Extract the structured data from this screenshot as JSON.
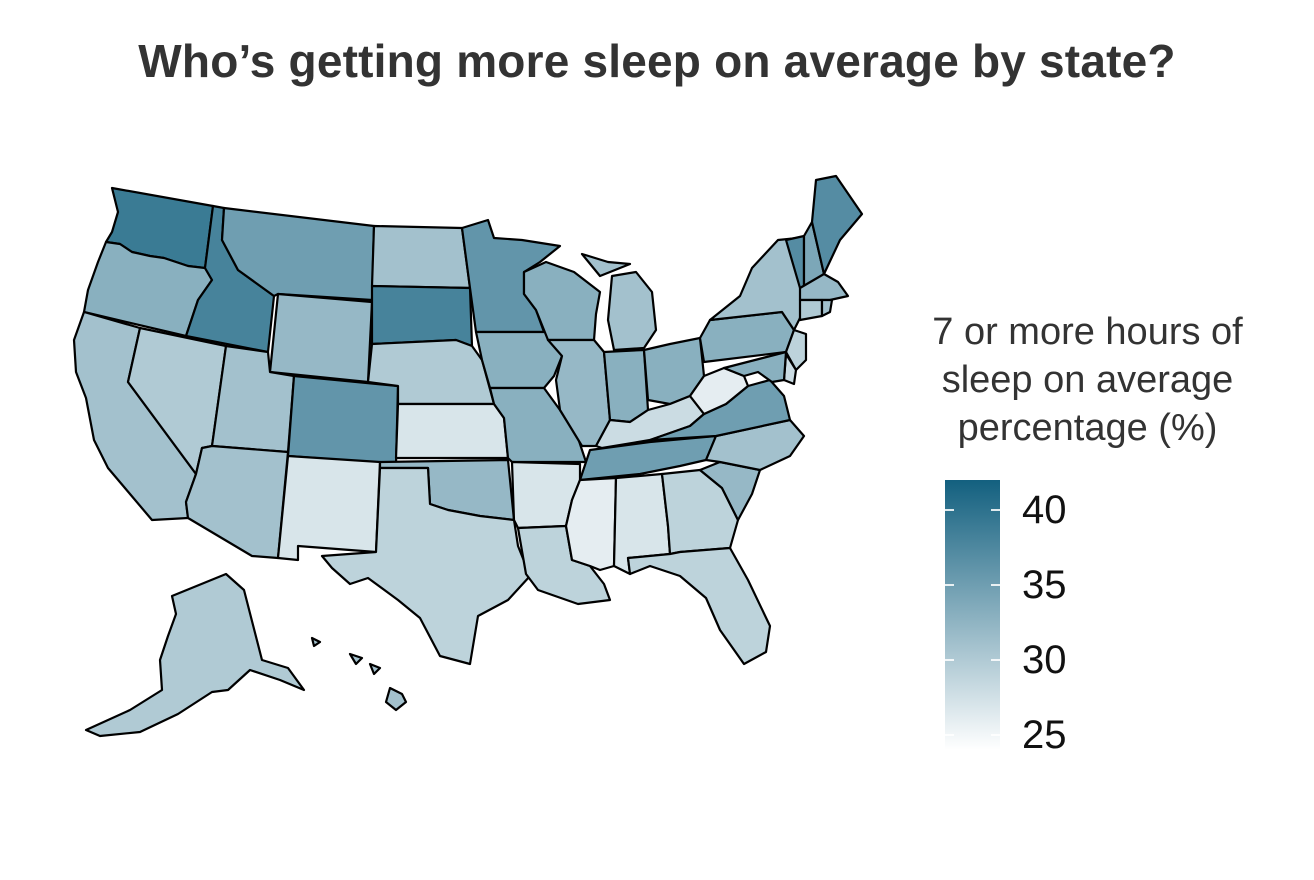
{
  "title": "Who’s getting more sleep on average by state?",
  "legend": {
    "title_lines": [
      "7 or more hours of",
      "sleep on average",
      "percentage (%)"
    ],
    "min": 24,
    "max": 42,
    "ticks": [
      40,
      35,
      30,
      25
    ],
    "color_low": "#ffffff",
    "color_high": "#13607f"
  },
  "colors": {
    "stroke": "#000000",
    "title": "#333333",
    "background": "#ffffff"
  },
  "states": [
    {
      "id": "WA",
      "value": 39
    },
    {
      "id": "OR",
      "value": 33
    },
    {
      "id": "CA",
      "value": 31
    },
    {
      "id": "ID",
      "value": 38
    },
    {
      "id": "NV",
      "value": 30
    },
    {
      "id": "MT",
      "value": 35
    },
    {
      "id": "WY",
      "value": 32
    },
    {
      "id": "UT",
      "value": 31
    },
    {
      "id": "AZ",
      "value": 31
    },
    {
      "id": "CO",
      "value": 36
    },
    {
      "id": "NM",
      "value": 27
    },
    {
      "id": "ND",
      "value": 31
    },
    {
      "id": "SD",
      "value": 38
    },
    {
      "id": "NE",
      "value": 30
    },
    {
      "id": "KS",
      "value": 27
    },
    {
      "id": "OK",
      "value": 32
    },
    {
      "id": "TX",
      "value": 29
    },
    {
      "id": "MN",
      "value": 36
    },
    {
      "id": "IA",
      "value": 33
    },
    {
      "id": "MO",
      "value": 33
    },
    {
      "id": "AR",
      "value": 27
    },
    {
      "id": "LA",
      "value": 29
    },
    {
      "id": "WI",
      "value": 33
    },
    {
      "id": "IL",
      "value": 32
    },
    {
      "id": "MI",
      "value": 31
    },
    {
      "id": "IN",
      "value": 33
    },
    {
      "id": "OH",
      "value": 33
    },
    {
      "id": "KY",
      "value": 28
    },
    {
      "id": "TN",
      "value": 35
    },
    {
      "id": "MS",
      "value": 26
    },
    {
      "id": "AL",
      "value": 27
    },
    {
      "id": "GA",
      "value": 29
    },
    {
      "id": "FL",
      "value": 29
    },
    {
      "id": "SC",
      "value": 32
    },
    {
      "id": "NC",
      "value": 31
    },
    {
      "id": "VA",
      "value": 35
    },
    {
      "id": "WV",
      "value": 26
    },
    {
      "id": "PA",
      "value": 33
    },
    {
      "id": "NY",
      "value": 31
    },
    {
      "id": "VT",
      "value": 37
    },
    {
      "id": "NH",
      "value": 34
    },
    {
      "id": "ME",
      "value": 37
    },
    {
      "id": "MA",
      "value": 32
    },
    {
      "id": "CT",
      "value": 30
    },
    {
      "id": "RI",
      "value": 31
    },
    {
      "id": "NJ",
      "value": 29
    },
    {
      "id": "DE",
      "value": 28
    },
    {
      "id": "MD",
      "value": 33
    },
    {
      "id": "AK",
      "value": 30
    },
    {
      "id": "HI",
      "value": 31
    }
  ]
}
